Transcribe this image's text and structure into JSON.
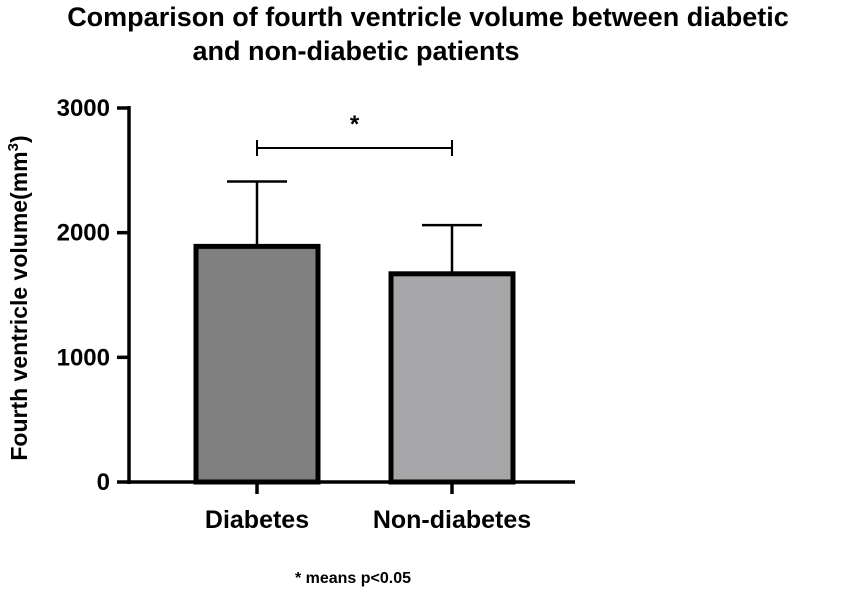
{
  "chart_data": {
    "type": "bar",
    "title_lines": [
      "Comparison of fourth ventricle volume between diabetic",
      "and non-diabetic patients"
    ],
    "ylabel": "Fourth ventricle volume(mm",
    "ylabel_sup": "3",
    "ylabel_close": ")",
    "xlabel": "",
    "categories": [
      "Diabetes",
      "Non-diabetes"
    ],
    "values": [
      1890,
      1670
    ],
    "error_upper": [
      2410,
      2060
    ],
    "ylim": [
      0,
      3000
    ],
    "yticks": [
      0,
      1000,
      2000,
      3000
    ],
    "bar_colors": [
      "#808080",
      "#a6a6a8"
    ],
    "significance": {
      "pair": [
        "Diabetes",
        "Non-diabetes"
      ],
      "marker": "*"
    },
    "footnote": "* means p<0.05",
    "grid": false,
    "legend": "none"
  }
}
